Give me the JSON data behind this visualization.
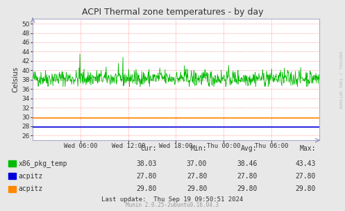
{
  "title": "ACPI Thermal zone temperatures - by day",
  "ylabel": "Celsius",
  "fig_bg_color": "#e8e8e8",
  "plot_bg_color": "#ffffff",
  "grid_color": "#ffaaaa",
  "grid_style": "--",
  "ylim": [
    25,
    51
  ],
  "yticks": [
    26,
    28,
    30,
    32,
    34,
    36,
    38,
    40,
    42,
    44,
    46,
    48,
    50
  ],
  "x_tick_labels": [
    "Wed 06:00",
    "Wed 12:00",
    "Wed 18:00",
    "Thu 00:00",
    "Thu 06:00"
  ],
  "x_tick_positions": [
    0.1667,
    0.3333,
    0.5,
    0.6667,
    0.8333
  ],
  "green_line_color": "#00bb00",
  "blue_line_value": 27.8,
  "orange_line_value": 29.8,
  "blue_color": "#0000dd",
  "orange_color": "#ff8800",
  "legend_labels": [
    "x86_pkg_temp",
    "acpitz",
    "acpitz"
  ],
  "legend_colors": [
    "#00bb00",
    "#0000dd",
    "#ff8800"
  ],
  "table_headers": [
    "Cur:",
    "Min:",
    "Avg:",
    "Max:"
  ],
  "table_row1": [
    "38.03",
    "37.00",
    "38.46",
    "43.43"
  ],
  "table_row2": [
    "27.80",
    "27.80",
    "27.80",
    "27.80"
  ],
  "table_row3": [
    "29.80",
    "29.80",
    "29.80",
    "29.80"
  ],
  "last_update": "Last update:  Thu Sep 19 09:50:51 2024",
  "footer": "Munin 2.0.25-2ubuntu0.16.04.3",
  "rrdtool_label": "RRDTOOL / TOBI OETIKER",
  "seed": 42,
  "n_points": 700,
  "green_base": 38.3,
  "green_noise": 0.9,
  "green_min": 36.5,
  "green_max": 41.5,
  "spike1_idx": 115,
  "spike1_val": 43.5,
  "spike2_idx": 220,
  "spike2_val": 42.8,
  "spike3_idx": 310,
  "spike3_val": 40.5,
  "spike4_idx": 370,
  "spike4_val": 41.0
}
